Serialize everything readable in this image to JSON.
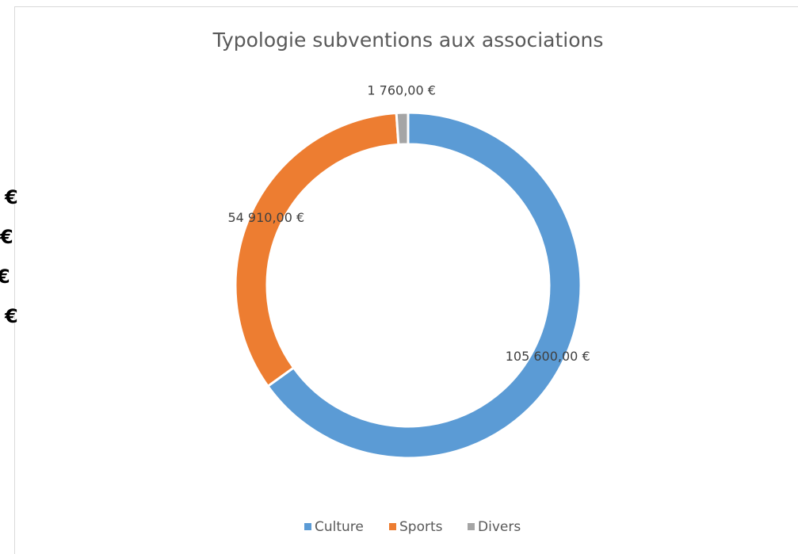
{
  "chart_data": {
    "type": "donut",
    "title": "Typologie subventions aux associations",
    "categories": [
      "Culture",
      "Sports",
      "Divers"
    ],
    "values": [
      105600,
      54910,
      1760
    ],
    "value_labels": [
      "105 600,00 €",
      "54 910,00 €",
      "1 760,00 €"
    ],
    "colors": [
      "#5b9bd5",
      "#ed7d31",
      "#a5a5a5"
    ],
    "legend": "bottom"
  },
  "clipped_labels": [
    "€",
    "€",
    "€",
    "€"
  ]
}
